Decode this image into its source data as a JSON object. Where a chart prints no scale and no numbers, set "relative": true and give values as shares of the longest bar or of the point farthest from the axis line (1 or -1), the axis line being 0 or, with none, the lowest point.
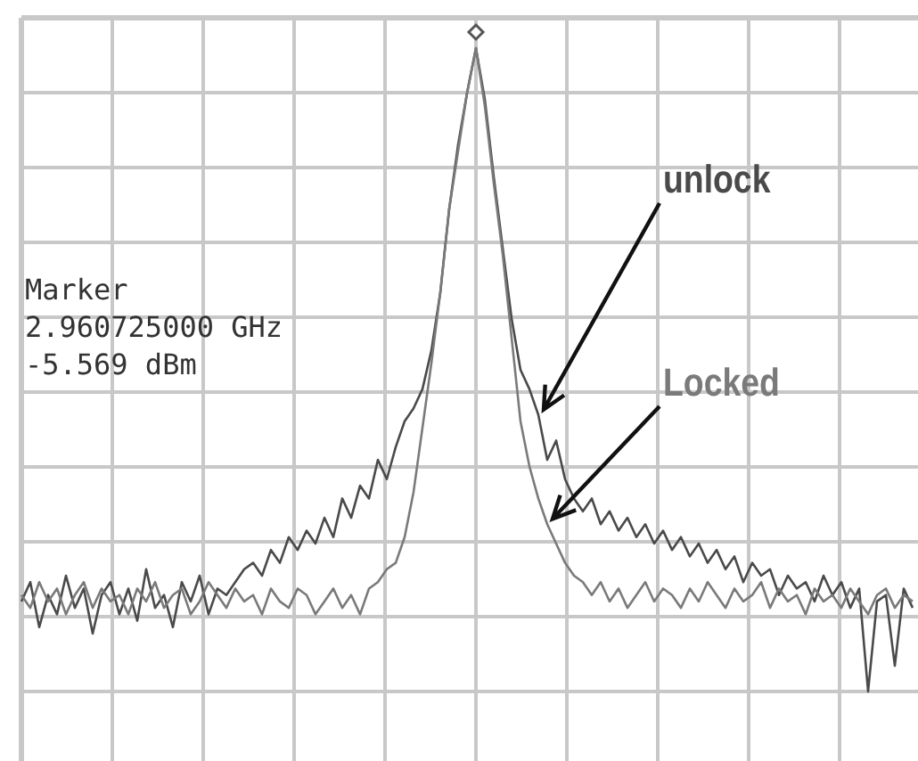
{
  "chart_data": {
    "type": "line",
    "relative": true,
    "grid": true,
    "line_style": "solid",
    "categories": [
      null,
      null,
      null,
      null,
      null,
      null,
      null,
      null,
      null,
      null,
      null,
      null,
      null,
      null,
      null,
      null,
      null,
      null,
      null,
      null,
      null,
      null,
      null,
      null,
      null,
      null,
      null,
      null,
      null,
      null,
      null,
      null,
      null,
      null,
      null,
      null,
      null,
      null,
      null,
      null,
      null,
      null,
      null,
      null,
      null,
      null,
      null,
      null,
      null,
      null,
      null,
      null,
      null,
      null,
      null,
      null,
      null,
      null,
      null,
      null,
      null,
      null,
      null,
      null,
      null,
      null,
      null,
      null,
      null,
      null,
      null,
      null,
      null,
      null,
      null,
      null,
      null,
      null,
      null,
      null,
      null,
      null,
      null,
      null,
      null,
      null,
      null,
      null,
      null,
      null,
      null,
      null,
      null,
      null,
      null,
      null,
      null,
      null,
      null,
      null,
      null
    ],
    "series": [
      {
        "name": "unlock",
        "color": "#4a4a4a",
        "values": [
          0.14,
          0.17,
          0.1,
          0.15,
          0.12,
          0.18,
          0.13,
          0.16,
          0.09,
          0.15,
          0.17,
          0.12,
          0.16,
          0.11,
          0.19,
          0.13,
          0.15,
          0.1,
          0.17,
          0.14,
          0.18,
          0.12,
          0.16,
          0.15,
          0.17,
          0.19,
          0.2,
          0.18,
          0.22,
          0.2,
          0.24,
          0.22,
          0.25,
          0.23,
          0.27,
          0.24,
          0.3,
          0.27,
          0.32,
          0.3,
          0.36,
          0.33,
          0.38,
          0.42,
          0.44,
          0.47,
          0.53,
          0.62,
          0.75,
          0.85,
          0.93,
          1.0,
          0.92,
          0.8,
          0.69,
          0.58,
          0.5,
          0.47,
          0.43,
          0.36,
          0.39,
          0.33,
          0.3,
          0.28,
          0.3,
          0.26,
          0.28,
          0.25,
          0.27,
          0.24,
          0.26,
          0.23,
          0.25,
          0.22,
          0.24,
          0.21,
          0.23,
          0.2,
          0.22,
          0.19,
          0.21,
          0.17,
          0.2,
          0.18,
          0.19,
          0.15,
          0.18,
          0.16,
          0.17,
          0.14,
          0.18,
          0.15,
          0.17,
          0.13,
          0.16,
          0.0,
          0.14,
          0.15,
          0.04,
          0.16,
          0.13
        ]
      },
      {
        "name": "Locked",
        "color": "#7a7a7a",
        "values": [
          0.15,
          0.13,
          0.17,
          0.14,
          0.16,
          0.12,
          0.15,
          0.17,
          0.13,
          0.16,
          0.14,
          0.15,
          0.12,
          0.16,
          0.14,
          0.17,
          0.13,
          0.15,
          0.16,
          0.12,
          0.14,
          0.17,
          0.15,
          0.13,
          0.16,
          0.14,
          0.15,
          0.12,
          0.16,
          0.14,
          0.13,
          0.16,
          0.15,
          0.12,
          0.14,
          0.16,
          0.13,
          0.15,
          0.12,
          0.16,
          0.17,
          0.19,
          0.2,
          0.24,
          0.31,
          0.41,
          0.51,
          0.62,
          0.75,
          0.84,
          0.93,
          1.0,
          0.91,
          0.79,
          0.68,
          0.55,
          0.42,
          0.35,
          0.3,
          0.26,
          0.23,
          0.2,
          0.18,
          0.17,
          0.15,
          0.17,
          0.14,
          0.16,
          0.13,
          0.15,
          0.17,
          0.14,
          0.16,
          0.15,
          0.13,
          0.16,
          0.14,
          0.17,
          0.15,
          0.13,
          0.16,
          0.14,
          0.15,
          0.17,
          0.13,
          0.16,
          0.14,
          0.15,
          0.12,
          0.16,
          0.14,
          0.15,
          0.13,
          0.16,
          0.14,
          0.12,
          0.15,
          0.16,
          0.13,
          0.15,
          0.14
        ]
      }
    ],
    "annotations": [
      "Marker\n2.960725000 GHz\n-5.569 dBm"
    ]
  }
}
